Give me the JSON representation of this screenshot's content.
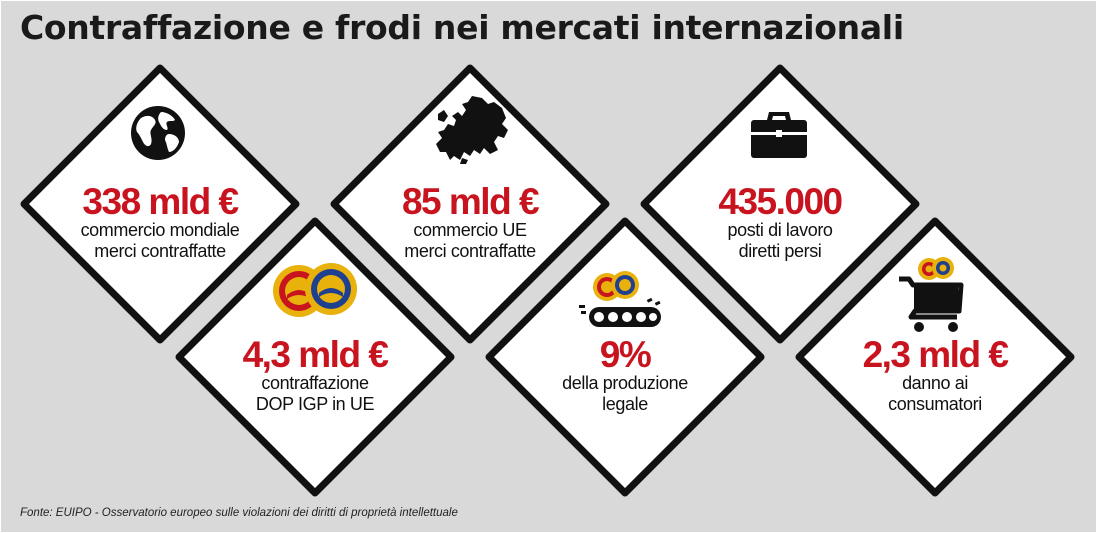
{
  "title": "Contraffazione e frodi nei mercati internazionali",
  "source": "Fonte: EUIPO - Osservatorio europeo sulle violazioni dei diritti di proprietà intellettuale",
  "colors": {
    "accent": "#c8141e",
    "tile_fill": "#ffffff",
    "tile_border": "#111111",
    "background": "#d9d9d9"
  },
  "tiles": [
    {
      "icon": "globe-icon",
      "value": "338 mld €",
      "lines": [
        "commercio mondiale",
        "merci contraffatte"
      ]
    },
    {
      "icon": "dop-igp-seals-icon",
      "value": "4,3 mld €",
      "lines": [
        "contraffazione",
        "DOP IGP in UE"
      ]
    },
    {
      "icon": "europe-map-icon",
      "value": "85 mld €",
      "lines": [
        "commercio UE",
        "merci contraffatte"
      ]
    },
    {
      "icon": "conveyor-belt-icon",
      "value": "9%",
      "lines": [
        "della produzione",
        "legale"
      ]
    },
    {
      "icon": "briefcase-icon",
      "value": "435.000",
      "lines": [
        "posti di lavoro",
        "diretti persi"
      ]
    },
    {
      "icon": "shopping-cart-icon",
      "value": "2,3 mld €",
      "lines": [
        "danno ai",
        "consumatori"
      ]
    }
  ]
}
